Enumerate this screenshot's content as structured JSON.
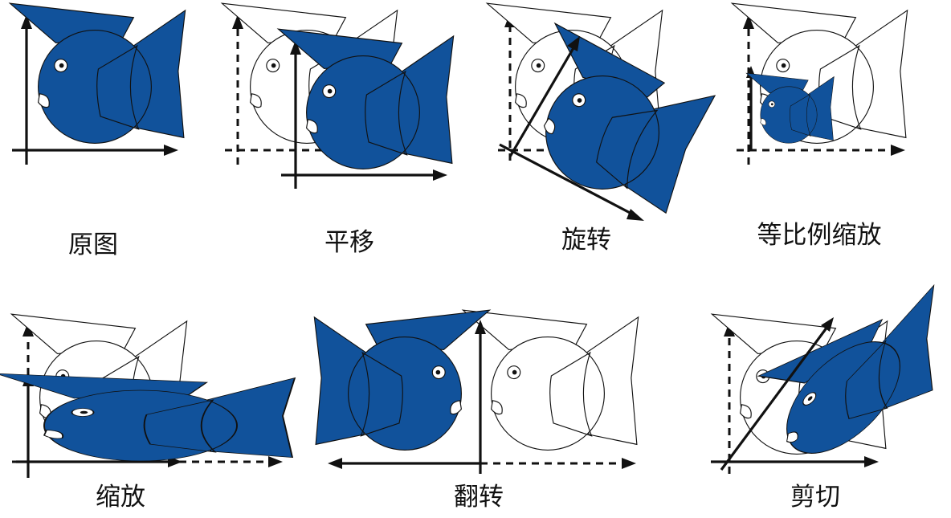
{
  "colors": {
    "fish_fill": "#11529b",
    "outline": "#111111",
    "ghost_fill": "#ffffff",
    "background": "#ffffff"
  },
  "panels": [
    {
      "id": "original",
      "label": "原图"
    },
    {
      "id": "translate",
      "label": "平移"
    },
    {
      "id": "rotate",
      "label": "旋转"
    },
    {
      "id": "uniform-scale",
      "label": "等比例缩放"
    },
    {
      "id": "scale",
      "label": "缩放"
    },
    {
      "id": "flip",
      "label": "翻转"
    },
    {
      "id": "shear",
      "label": "剪切"
    }
  ]
}
